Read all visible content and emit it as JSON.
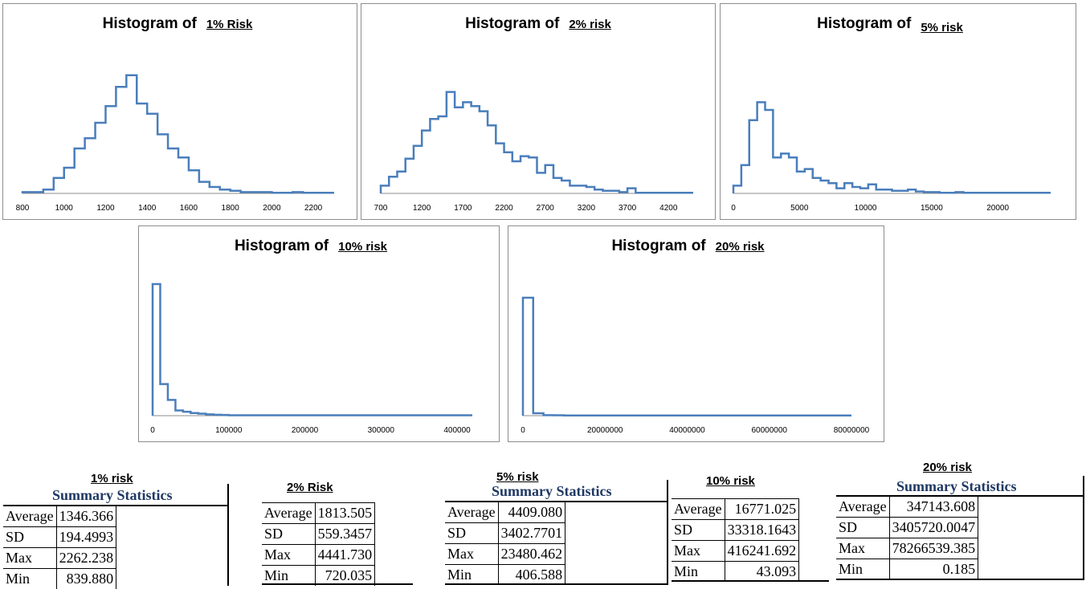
{
  "chart_data": [
    {
      "type": "histogram",
      "title": "Histogram of",
      "subtitle": "1% Risk",
      "xlim": [
        800,
        2300
      ],
      "xticks": [
        800,
        1000,
        1200,
        1400,
        1600,
        1800,
        2000,
        2200
      ],
      "bin_edges": [
        800,
        850,
        900,
        950,
        1000,
        1050,
        1100,
        1150,
        1200,
        1250,
        1300,
        1350,
        1400,
        1450,
        1500,
        1550,
        1600,
        1650,
        1700,
        1750,
        1800,
        1850,
        1900,
        1950,
        2000,
        2050,
        2100,
        2150,
        2200,
        2250,
        2300
      ],
      "values": [
        1,
        1,
        3,
        12,
        20,
        35,
        43,
        55,
        68,
        83,
        92,
        70,
        62,
        46,
        35,
        28,
        18,
        9,
        5,
        3,
        2,
        1,
        1,
        1,
        0.5,
        0.5,
        1,
        0.5,
        0.5,
        0.5
      ],
      "ylim": [
        0,
        100
      ]
    },
    {
      "type": "histogram",
      "title": "Histogram of",
      "subtitle": "2% risk",
      "xlim": [
        700,
        4500
      ],
      "xticks": [
        700,
        1200,
        1700,
        2200,
        2700,
        3200,
        3700,
        4200
      ],
      "bin_edges": [
        700,
        800,
        900,
        1000,
        1100,
        1200,
        1300,
        1400,
        1500,
        1600,
        1700,
        1800,
        1900,
        2000,
        2100,
        2200,
        2300,
        2400,
        2500,
        2600,
        2700,
        2800,
        2900,
        3000,
        3100,
        3200,
        3300,
        3400,
        3500,
        3600,
        3700,
        3800,
        3900,
        4000,
        4100,
        4200,
        4300,
        4400,
        4500
      ],
      "values": [
        6,
        13,
        17,
        27,
        37,
        49,
        58,
        60,
        79,
        67,
        71,
        68,
        64,
        53,
        39,
        32,
        25,
        29,
        28,
        16,
        22,
        12,
        10,
        6,
        6,
        5,
        3,
        2,
        2,
        1,
        4,
        0.5,
        0.5,
        0.5,
        0.5,
        0.5,
        0.5,
        0.5
      ],
      "ylim": [
        0,
        100
      ]
    },
    {
      "type": "histogram",
      "title": "Histogram of",
      "subtitle": "5% risk",
      "xlim": [
        0,
        24000
      ],
      "xticks": [
        0,
        5000,
        10000,
        15000,
        20000
      ],
      "bin_edges": [
        0,
        600,
        1200,
        1800,
        2400,
        3000,
        3600,
        4200,
        4800,
        5400,
        6000,
        6600,
        7200,
        7800,
        8400,
        9000,
        9600,
        10200,
        10800,
        11400,
        12000,
        12600,
        13200,
        13800,
        14400,
        15000,
        15600,
        16200,
        16800,
        17400,
        18000,
        18600,
        19200,
        19800,
        20400,
        21000,
        21600,
        22200,
        22800,
        23400,
        24000
      ],
      "values": [
        6,
        22,
        57,
        71,
        65,
        28,
        31,
        28,
        17,
        19,
        12,
        10,
        8,
        4,
        8,
        5,
        4,
        7,
        3,
        3,
        2,
        2,
        3,
        1.5,
        1,
        1,
        0.5,
        0.5,
        1,
        0.5,
        0.5,
        0.5,
        0.5,
        0.5,
        0.5,
        0.5,
        0.5,
        0.5,
        0.5,
        0.5
      ],
      "ylim": [
        0,
        100
      ]
    },
    {
      "type": "histogram",
      "title": "Histogram of",
      "subtitle": "10% risk",
      "xlim": [
        0,
        420000
      ],
      "xticks": [
        0,
        100000,
        200000,
        300000,
        400000
      ],
      "bin_edges": [
        0,
        10000,
        20000,
        30000,
        40000,
        50000,
        60000,
        70000,
        80000,
        90000,
        100000,
        120000,
        140000,
        160000,
        180000,
        200000,
        220000,
        240000,
        260000,
        280000,
        300000,
        320000,
        340000,
        360000,
        380000,
        400000,
        420000
      ],
      "values": [
        100,
        24,
        12,
        4,
        3,
        2,
        1.5,
        1,
        0.7,
        0.5,
        0.3,
        0.3,
        0.3,
        0.3,
        0.3,
        0.3,
        0.3,
        0.3,
        0.3,
        0.3,
        0.3,
        0.3,
        0.3,
        0.3,
        0.3,
        0.3
      ],
      "ylim": [
        0,
        100
      ]
    },
    {
      "type": "histogram",
      "title": "Histogram of",
      "subtitle": "20% risk",
      "xlim": [
        0,
        80000000
      ],
      "xticks": [
        0,
        20000000,
        40000000,
        60000000,
        80000000
      ],
      "bin_edges": [
        0,
        2500000,
        5000000,
        7500000,
        10000000,
        20000000,
        40000000,
        60000000,
        80000000
      ],
      "values": [
        100,
        2,
        0.4,
        0.3,
        0.2,
        0.2,
        0.2,
        0.2
      ],
      "ylim": [
        0,
        100
      ]
    }
  ],
  "stats": [
    {
      "risk": "1% risk",
      "summary_title": "Summary Statistics",
      "rows": [
        [
          "Average",
          "1346.366"
        ],
        [
          "SD",
          "194.4993"
        ],
        [
          "Max",
          "2262.238"
        ],
        [
          "Min",
          "839.880"
        ]
      ]
    },
    {
      "risk": "2% Risk",
      "summary_title": "",
      "rows": [
        [
          "Average",
          "1813.505"
        ],
        [
          "SD",
          "559.3457"
        ],
        [
          "Max",
          "4441.730"
        ],
        [
          "Min",
          "720.035"
        ]
      ]
    },
    {
      "risk": "5% risk",
      "summary_title": "Summary Statistics",
      "rows": [
        [
          "Average",
          "4409.080"
        ],
        [
          "SD",
          "3402.7701"
        ],
        [
          "Max",
          "23480.462"
        ],
        [
          "Min",
          "406.588"
        ]
      ]
    },
    {
      "risk": "10% risk",
      "summary_title": "",
      "rows": [
        [
          "Average",
          "16771.025"
        ],
        [
          "SD",
          "33318.1643"
        ],
        [
          "Max",
          "416241.692"
        ],
        [
          "Min",
          "43.093"
        ]
      ]
    },
    {
      "risk": "20% risk",
      "summary_title": "Summary Statistics",
      "rows": [
        [
          "Average",
          "347143.608"
        ],
        [
          "SD",
          "3405720.0047"
        ],
        [
          "Max",
          "78266539.385"
        ],
        [
          "Min",
          "0.185"
        ]
      ]
    }
  ],
  "colors": {
    "line": "#4a7ebb",
    "axis": "#8c8c8c"
  }
}
